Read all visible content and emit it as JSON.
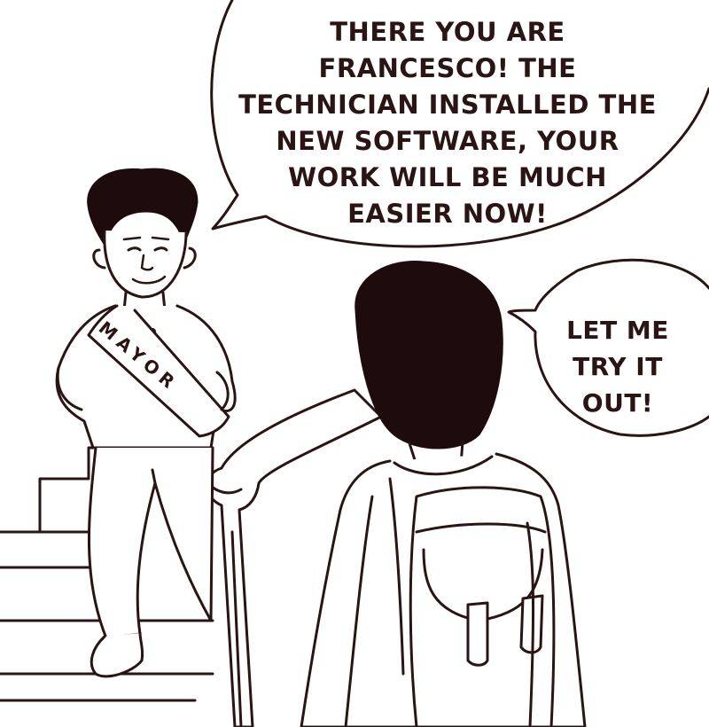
{
  "comic": {
    "speech_main": "THERE YOU ARE\nFRANCESCO! THE\nTECHNICIAN INSTALLED THE\nNEW SOFTWARE, YOUR\nWORK WILL BE MUCH\nEASIER NOW!",
    "speech_reply": "LET ME\nTRY IT\nOUT!",
    "sash_label": "MAYOR"
  },
  "colors": {
    "ink": "#2a1414",
    "paper": "#ffffff"
  }
}
